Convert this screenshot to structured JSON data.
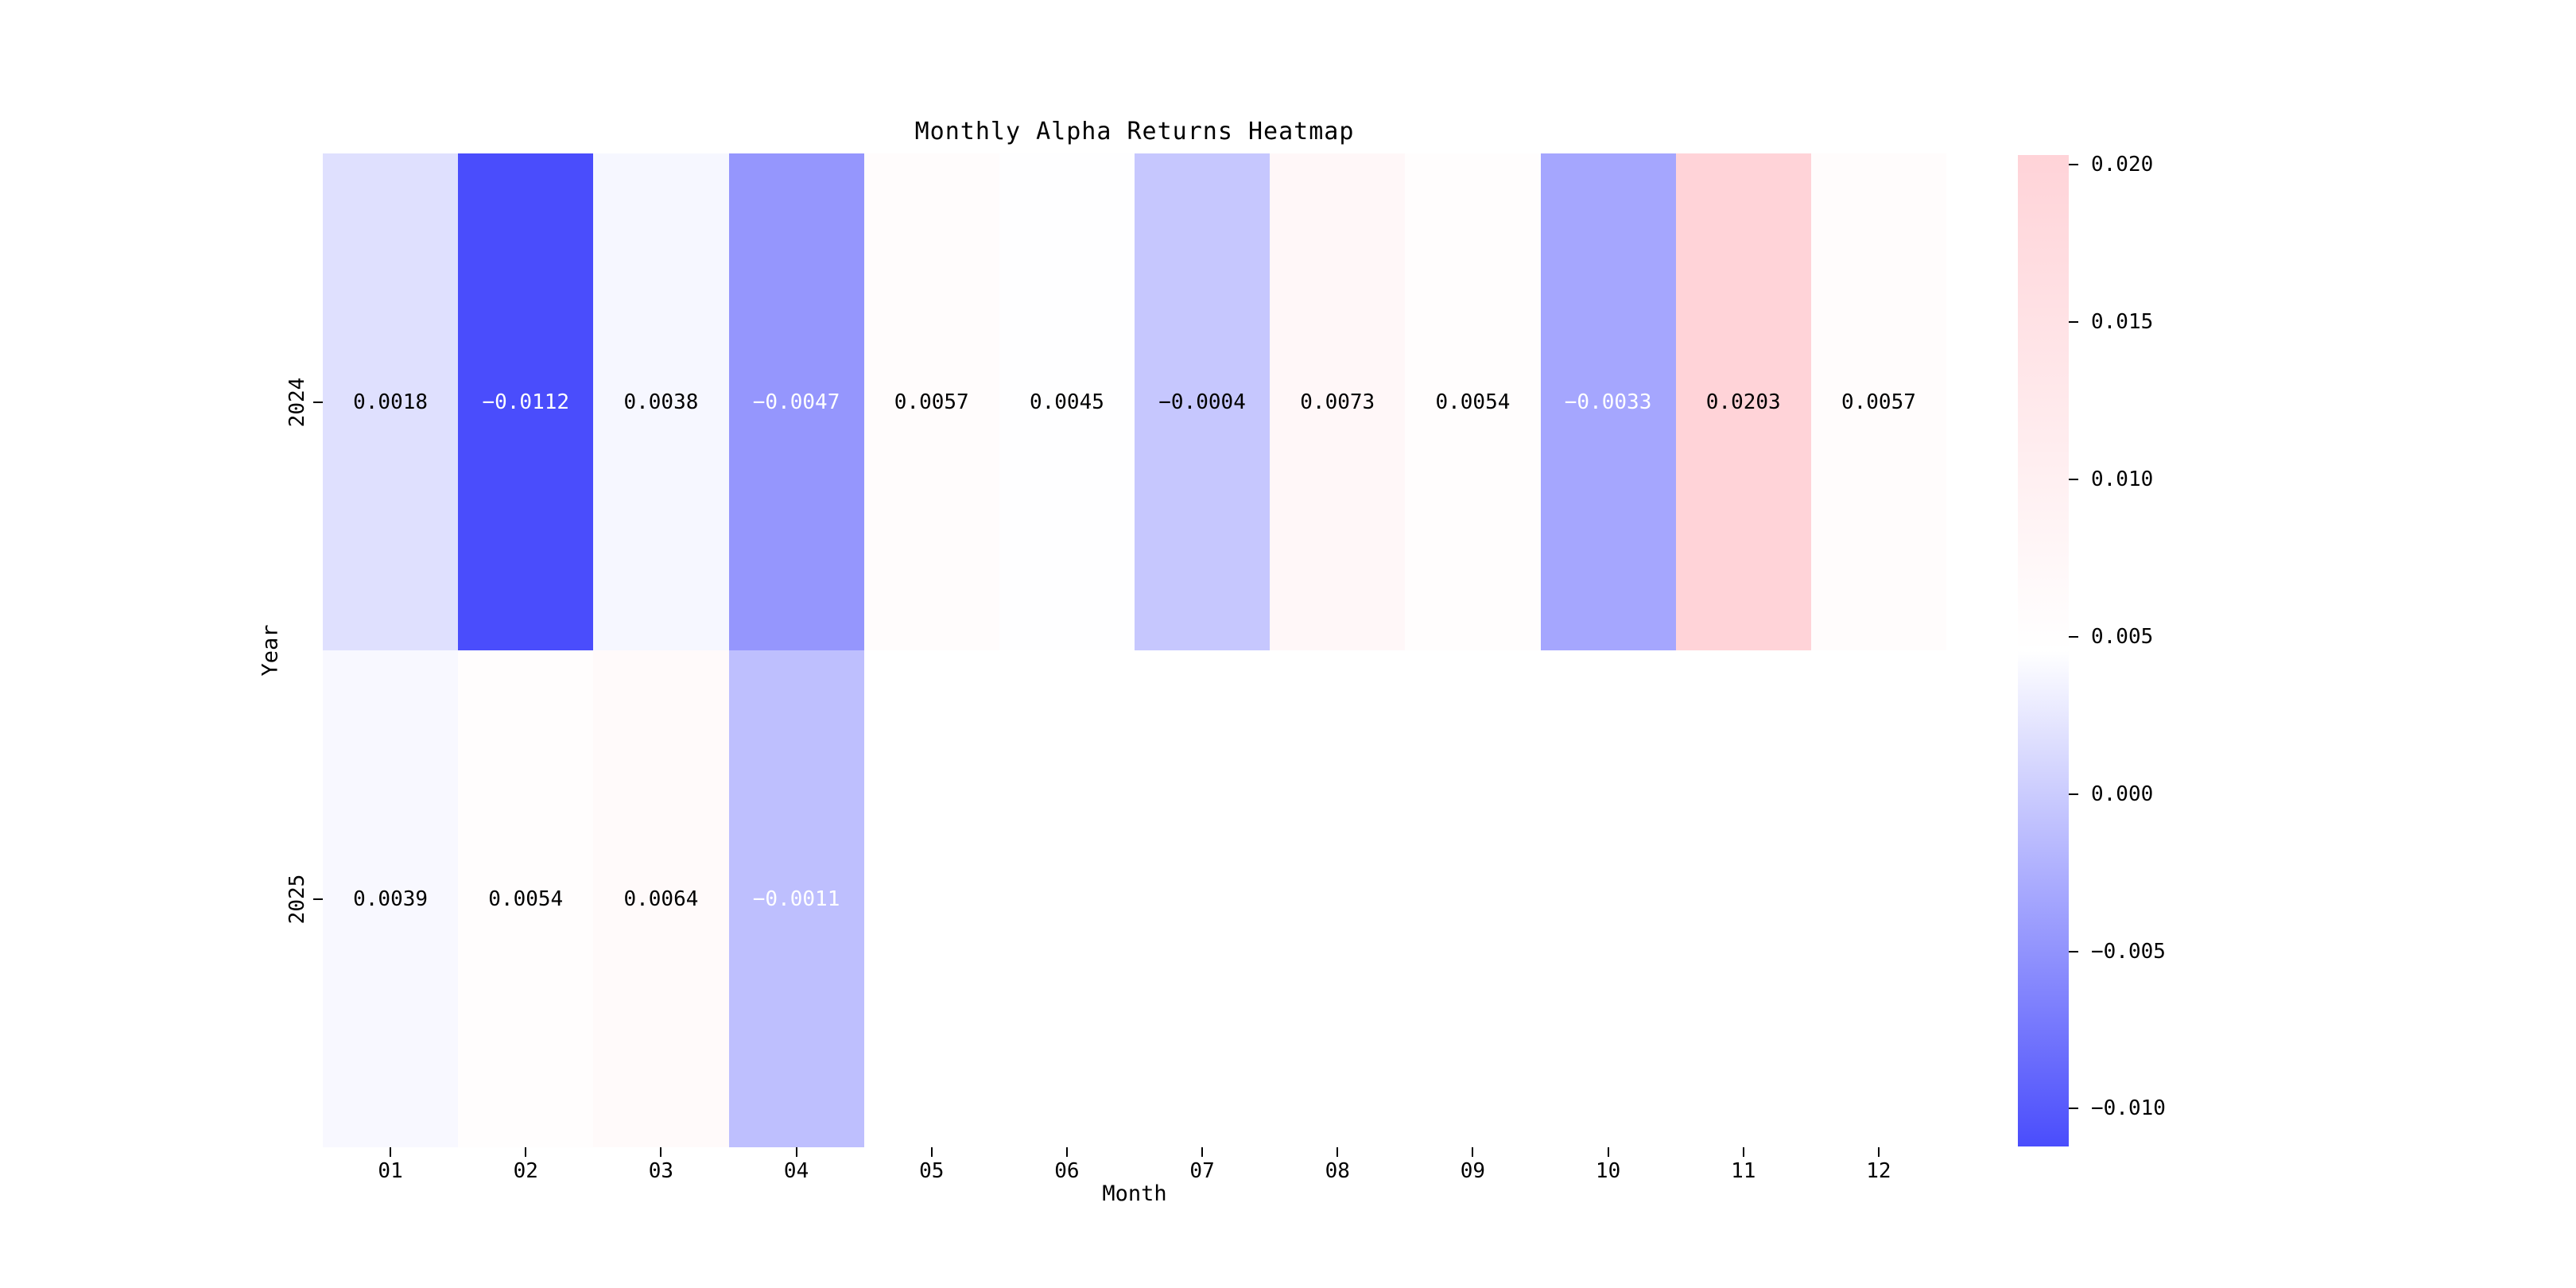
{
  "chart_data": {
    "type": "heatmap",
    "title": "Monthly Alpha Returns Heatmap",
    "xlabel": "Month",
    "ylabel": "Year",
    "x_categories": [
      "01",
      "02",
      "03",
      "04",
      "05",
      "06",
      "07",
      "08",
      "09",
      "10",
      "11",
      "12"
    ],
    "y_categories": [
      "2024",
      "2025"
    ],
    "vmin": -0.0112,
    "vmax": 0.0203,
    "grid": false,
    "legend_position": "right-colorbar",
    "rows": [
      {
        "year": "2024",
        "values": [
          0.0018,
          -0.0112,
          0.0038,
          -0.0047,
          0.0057,
          0.0045,
          -0.0004,
          0.0073,
          0.0054,
          -0.0033,
          0.0203,
          0.0057
        ],
        "labels": [
          "0.0018",
          "−0.0112",
          "0.0038",
          "−0.0047",
          "0.0057",
          "0.0045",
          "−0.0004",
          "0.0073",
          "0.0054",
          "−0.0033",
          "0.0203",
          "0.0057"
        ],
        "label_colors": [
          "#000000",
          "#ffffff",
          "#000000",
          "#ffffff",
          "#000000",
          "#000000",
          "#000000",
          "#000000",
          "#000000",
          "#ffffff",
          "#000000",
          "#000000"
        ]
      },
      {
        "year": "2025",
        "values": [
          0.0039,
          0.0054,
          0.0064,
          -0.0011,
          null,
          null,
          null,
          null,
          null,
          null,
          null,
          null
        ],
        "labels": [
          "0.0039",
          "0.0054",
          "0.0064",
          "−0.0011",
          "",
          "",
          "",
          "",
          "",
          "",
          "",
          ""
        ],
        "label_colors": [
          "#000000",
          "#000000",
          "#000000",
          "#ffffff",
          "",
          "",
          "",
          "",
          "",
          "",
          "",
          ""
        ]
      }
    ],
    "colors": {
      "min": "#4A4DFC",
      "mid": "#FFFFFF",
      "max": "#FFD3D8",
      "nan": "#FFFFFF",
      "text": "#000000"
    },
    "colorbar": {
      "ticks": [
        {
          "value": 0.02,
          "label": "0.020"
        },
        {
          "value": 0.015,
          "label": "0.015"
        },
        {
          "value": 0.01,
          "label": "0.010"
        },
        {
          "value": 0.005,
          "label": "0.005"
        },
        {
          "value": 0.0,
          "label": "0.000"
        },
        {
          "value": -0.005,
          "label": "−0.005"
        },
        {
          "value": -0.01,
          "label": "−0.010"
        }
      ]
    }
  }
}
